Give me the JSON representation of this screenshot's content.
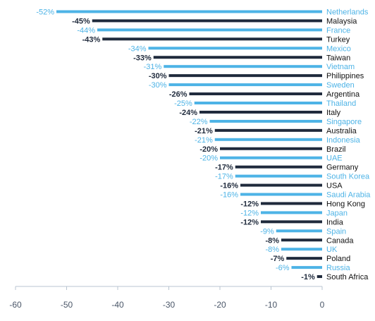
{
  "colors": {
    "dark": "#1f2a3c",
    "blue": "#4db3e6",
    "axis": "#b8c4d0",
    "tick_text": "#4a5668"
  },
  "chart_data": {
    "type": "bar",
    "orientation": "horizontal",
    "title": "",
    "xlabel": "",
    "ylabel": "",
    "xlim": [
      -60,
      0
    ],
    "x_ticks": [
      -60,
      -50,
      -40,
      -30,
      -20,
      -10,
      0
    ],
    "grid": false,
    "legend": "none",
    "categories": [
      "Netherlands",
      "Malaysia",
      "France",
      "Turkey",
      "Mexico",
      "Taiwan",
      "Vietnam",
      "Philippines",
      "Sweden",
      "Argentina",
      "Thailand",
      "Italy",
      "Singapore",
      "Australia",
      "Indonesia",
      "Brazil",
      "UAE",
      "Germany",
      "South Korea",
      "USA",
      "Saudi Arabia",
      "Hong Kong",
      "Japan",
      "India",
      "Spain",
      "Canada",
      "UK",
      "Poland",
      "Russia",
      "South Africa"
    ],
    "values": [
      -52,
      -45,
      -44,
      -43,
      -34,
      -33,
      -31,
      -30,
      -30,
      -26,
      -25,
      -24,
      -22,
      -21,
      -21,
      -20,
      -20,
      -17,
      -17,
      -16,
      -16,
      -12,
      -12,
      -12,
      -9,
      -8,
      -8,
      -7,
      -6,
      -1
    ],
    "value_labels": [
      "-52%",
      "-45%",
      "-44%",
      "-43%",
      "-34%",
      "-33%",
      "-31%",
      "-30%",
      "-30%",
      "-26%",
      "-25%",
      "-24%",
      "-22%",
      "-21%",
      "-21%",
      "-20%",
      "-20%",
      "-17%",
      "-17%",
      "-16%",
      "-16%",
      "-12%",
      "-12%",
      "-12%",
      "-9%",
      "-8%",
      "-8%",
      "-7%",
      "-6%",
      "-1%"
    ],
    "bar_colors": [
      "blue",
      "dark",
      "blue",
      "dark",
      "blue",
      "dark",
      "blue",
      "dark",
      "blue",
      "dark",
      "blue",
      "dark",
      "blue",
      "dark",
      "blue",
      "dark",
      "blue",
      "dark",
      "blue",
      "dark",
      "blue",
      "dark",
      "blue",
      "dark",
      "blue",
      "dark",
      "blue",
      "dark",
      "blue",
      "dark"
    ]
  }
}
